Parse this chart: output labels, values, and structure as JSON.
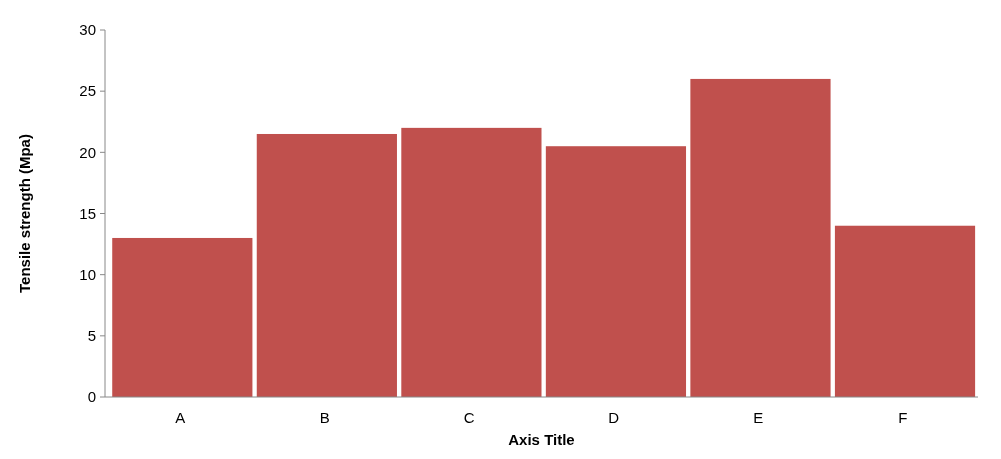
{
  "chart_data": {
    "type": "bar",
    "xlabel": "Axis Title",
    "ylabel": "Tensile strength (Mpa)",
    "categories": [
      "A",
      "B",
      "C",
      "D",
      "E",
      "F"
    ],
    "values": [
      13,
      21.5,
      22,
      20.5,
      26,
      14
    ],
    "color": "#c0504d",
    "ylim": [
      0,
      30
    ],
    "yticks": [
      0,
      5,
      10,
      15,
      20,
      25,
      30
    ],
    "grid": false
  }
}
